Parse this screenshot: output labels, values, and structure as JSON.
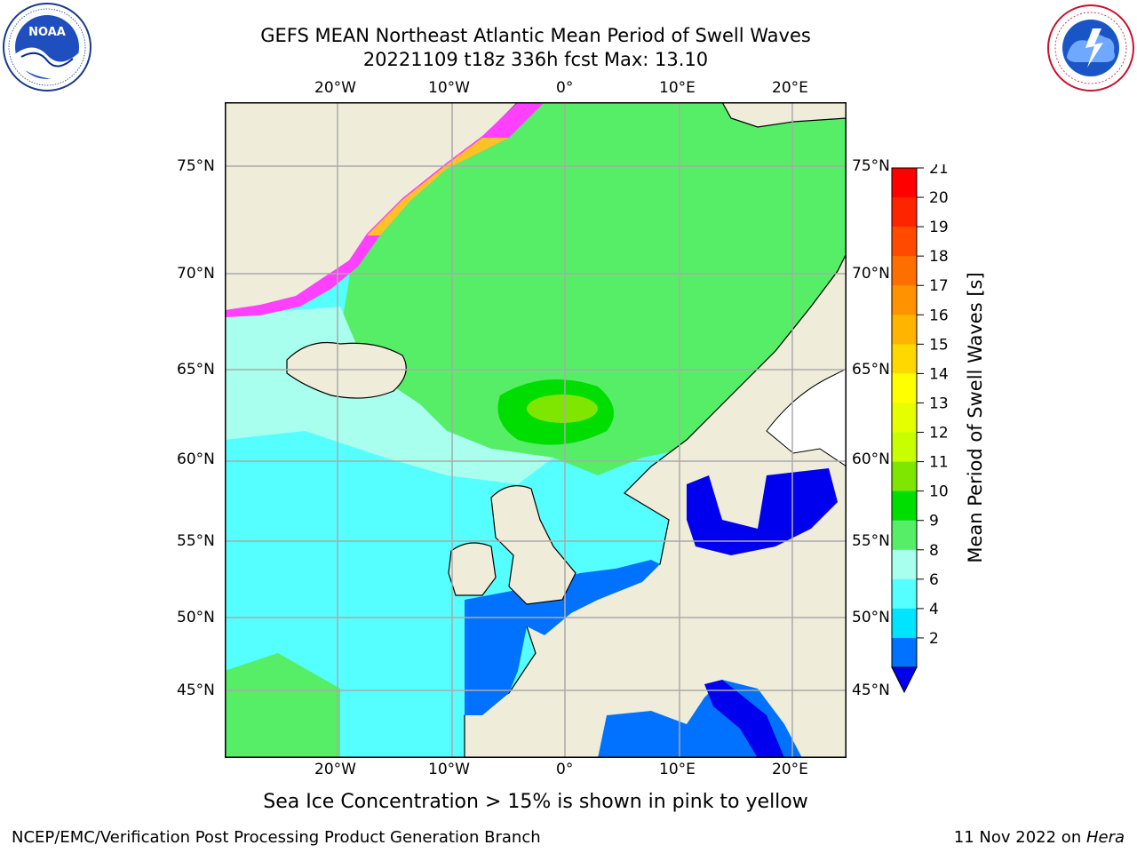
{
  "title": {
    "line1": "GEFS MEAN Northeast Atlantic Mean Period of Swell Waves",
    "line2": "20221109 t18z 336h fcst   Max: 13.10"
  },
  "map": {
    "lon_labels": [
      "20°W",
      "10°W",
      "0°",
      "10°E",
      "20°E"
    ],
    "lat_labels": [
      "75°N",
      "70°N",
      "65°N",
      "60°N",
      "55°N",
      "50°N",
      "45°N"
    ],
    "caption": "Sea Ice Concentration > 15% is shown in pink to yellow"
  },
  "colorbar": {
    "label": "Mean Period of Swell Waves [s]",
    "ticks": [
      "21",
      "20",
      "19",
      "18",
      "17",
      "16",
      "15",
      "14",
      "13",
      "12",
      "11",
      "10",
      "9",
      "8",
      "6",
      "4",
      "2"
    ],
    "colors": [
      "#ff0000",
      "#ff2400",
      "#ff4a00",
      "#ff6e00",
      "#ff9200",
      "#ffb400",
      "#ffd800",
      "#ffff00",
      "#e6ff00",
      "#c8ff00",
      "#7ee600",
      "#00dd00",
      "#55ee66",
      "#a8ffee",
      "#55ffff",
      "#00e5ff",
      "#0072ff"
    ],
    "extend_color": "#0000ee"
  },
  "logos": {
    "left_text": "NOAA",
    "right_ring_text": "NATIONAL WEATHER SERVICE"
  },
  "footer": {
    "left": "NCEP/EMC/Verification Post Processing Product Generation Branch",
    "right_prefix": "11 Nov 2022 on ",
    "right_host": "Hera"
  }
}
